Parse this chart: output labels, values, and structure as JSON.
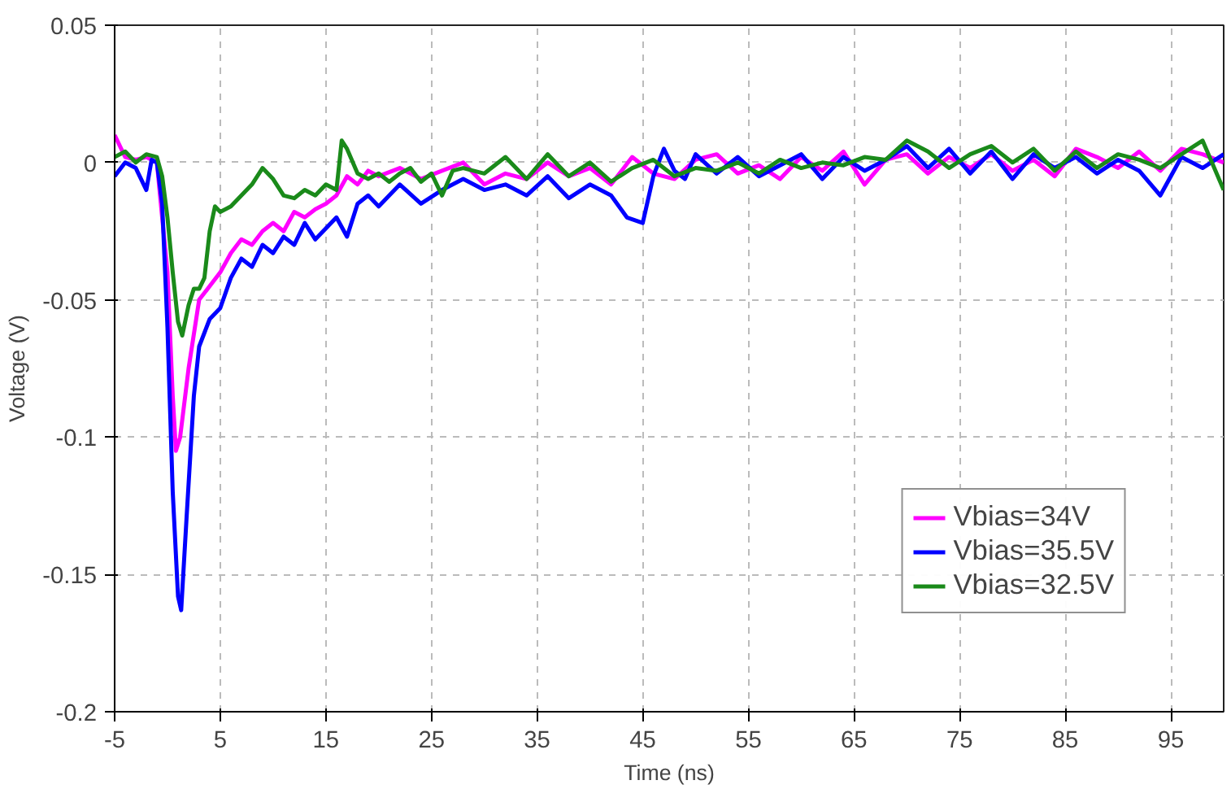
{
  "chart_data": {
    "type": "line",
    "xlabel": "Time (ns)",
    "ylabel": "Voltage (V)",
    "xlim": [
      -5,
      100
    ],
    "ylim": [
      -0.2,
      0.05
    ],
    "xticks": [
      -5,
      5,
      15,
      25,
      35,
      45,
      55,
      65,
      75,
      85,
      95
    ],
    "yticks": [
      {
        "value": -0.2,
        "label": "-0.2"
      },
      {
        "value": -0.15,
        "label": "-0.15"
      },
      {
        "value": -0.1,
        "label": "-0.1"
      },
      {
        "value": -0.05,
        "label": "-0.05"
      },
      {
        "value": 0,
        "label": "0"
      },
      {
        "value": 0.05,
        "label": "0.05"
      }
    ],
    "grid": true,
    "legend": "bottom right",
    "line_style": "solid",
    "marker": "none",
    "series": [
      {
        "name": "Vbias=34V",
        "color": "#ff00ff",
        "x": [
          -5,
          -4,
          -3,
          -2,
          -1,
          0,
          0.5,
          0.8,
          1.2,
          2,
          3,
          4,
          5,
          6,
          7,
          8,
          9,
          10,
          11,
          12,
          13,
          14,
          15,
          16,
          17,
          18,
          19,
          20,
          22,
          24,
          26,
          28,
          30,
          32,
          34,
          36,
          38,
          40,
          42,
          44,
          46,
          48,
          50,
          52,
          54,
          56,
          58,
          60,
          62,
          64,
          66,
          68,
          70,
          72,
          74,
          76,
          78,
          80,
          82,
          84,
          86,
          88,
          90,
          92,
          94,
          96,
          98,
          100
        ],
        "values": [
          0.01,
          0.002,
          0.001,
          0.002,
          0.0,
          -0.04,
          -0.085,
          -0.105,
          -0.1,
          -0.075,
          -0.05,
          -0.045,
          -0.04,
          -0.033,
          -0.028,
          -0.03,
          -0.025,
          -0.022,
          -0.025,
          -0.018,
          -0.02,
          -0.017,
          -0.015,
          -0.012,
          -0.005,
          -0.008,
          -0.003,
          -0.005,
          -0.002,
          -0.006,
          -0.003,
          0.0,
          -0.008,
          -0.004,
          -0.006,
          0.0,
          -0.005,
          -0.002,
          -0.008,
          0.002,
          -0.004,
          -0.006,
          0.001,
          0.003,
          -0.004,
          -0.001,
          -0.006,
          0.002,
          -0.003,
          0.004,
          -0.008,
          0.001,
          0.003,
          -0.004,
          0.002,
          -0.002,
          0.003,
          -0.003,
          0.001,
          -0.005,
          0.005,
          0.002,
          -0.002,
          0.004,
          -0.003,
          0.005,
          0.003,
          0.0
        ]
      },
      {
        "name": "Vbias=35.5V",
        "color": "#0000ff",
        "x": [
          -5,
          -4,
          -3,
          -2,
          -1.5,
          -1,
          -0.5,
          0,
          0.5,
          1,
          1.3,
          1.8,
          2.5,
          3,
          4,
          5,
          6,
          7,
          8,
          9,
          10,
          11,
          12,
          13,
          14,
          15,
          16,
          17,
          18,
          19,
          20,
          22,
          24,
          26,
          28,
          30,
          32,
          34,
          36,
          38,
          40,
          42,
          43.5,
          45,
          46,
          47,
          48,
          49,
          50,
          52,
          54,
          56,
          58,
          60,
          62,
          64,
          66,
          68,
          70,
          72,
          74,
          76,
          78,
          80,
          82,
          84,
          86,
          88,
          90,
          92,
          94,
          96,
          98,
          100
        ],
        "values": [
          -0.005,
          0.0,
          -0.002,
          -0.01,
          0.001,
          0.0,
          -0.015,
          -0.06,
          -0.12,
          -0.158,
          -0.163,
          -0.13,
          -0.085,
          -0.067,
          -0.057,
          -0.053,
          -0.042,
          -0.035,
          -0.038,
          -0.03,
          -0.033,
          -0.027,
          -0.03,
          -0.022,
          -0.028,
          -0.024,
          -0.02,
          -0.027,
          -0.015,
          -0.012,
          -0.016,
          -0.008,
          -0.015,
          -0.01,
          -0.006,
          -0.01,
          -0.008,
          -0.012,
          -0.005,
          -0.013,
          -0.008,
          -0.012,
          -0.02,
          -0.022,
          -0.005,
          0.005,
          -0.003,
          -0.006,
          0.003,
          -0.004,
          0.002,
          -0.005,
          -0.001,
          0.003,
          -0.006,
          0.002,
          -0.003,
          0.001,
          0.006,
          -0.002,
          0.005,
          -0.004,
          0.004,
          -0.006,
          0.003,
          -0.002,
          0.002,
          -0.004,
          0.001,
          -0.003,
          -0.012,
          0.002,
          -0.002,
          0.003
        ]
      },
      {
        "name": "Vbias=32.5V",
        "color": "#1a8a1a",
        "x": [
          -5,
          -4,
          -3,
          -2,
          -1,
          -0.5,
          0,
          0.5,
          1,
          1.4,
          2,
          2.5,
          3,
          3.5,
          4,
          4.5,
          5,
          6,
          7,
          8,
          9,
          10,
          11,
          12,
          13,
          14,
          15,
          16,
          16.5,
          17,
          18,
          19,
          20,
          21,
          22,
          23,
          24,
          25,
          26,
          27,
          28,
          30,
          32,
          34,
          36,
          38,
          40,
          42,
          44,
          46,
          48,
          50,
          52,
          54,
          56,
          58,
          60,
          62,
          64,
          66,
          68,
          70,
          72,
          74,
          76,
          78,
          80,
          82,
          84,
          86,
          88,
          90,
          92,
          94,
          96,
          98,
          100
        ],
        "values": [
          0.002,
          0.004,
          0.0,
          0.003,
          0.002,
          -0.005,
          -0.02,
          -0.04,
          -0.058,
          -0.063,
          -0.052,
          -0.046,
          -0.046,
          -0.042,
          -0.025,
          -0.016,
          -0.018,
          -0.016,
          -0.012,
          -0.008,
          -0.002,
          -0.006,
          -0.012,
          -0.013,
          -0.01,
          -0.012,
          -0.008,
          -0.01,
          0.008,
          0.005,
          -0.004,
          -0.006,
          -0.004,
          -0.007,
          -0.004,
          -0.002,
          -0.007,
          -0.004,
          -0.012,
          -0.003,
          -0.002,
          -0.004,
          0.002,
          -0.006,
          0.003,
          -0.005,
          0.0,
          -0.007,
          -0.002,
          0.001,
          -0.005,
          -0.002,
          -0.003,
          0.0,
          -0.004,
          0.001,
          -0.002,
          0.0,
          -0.001,
          0.002,
          0.001,
          0.008,
          0.004,
          -0.002,
          0.003,
          0.006,
          0.0,
          0.005,
          -0.003,
          0.004,
          -0.002,
          0.003,
          0.001,
          -0.002,
          0.003,
          0.008,
          -0.01
        ]
      }
    ]
  }
}
